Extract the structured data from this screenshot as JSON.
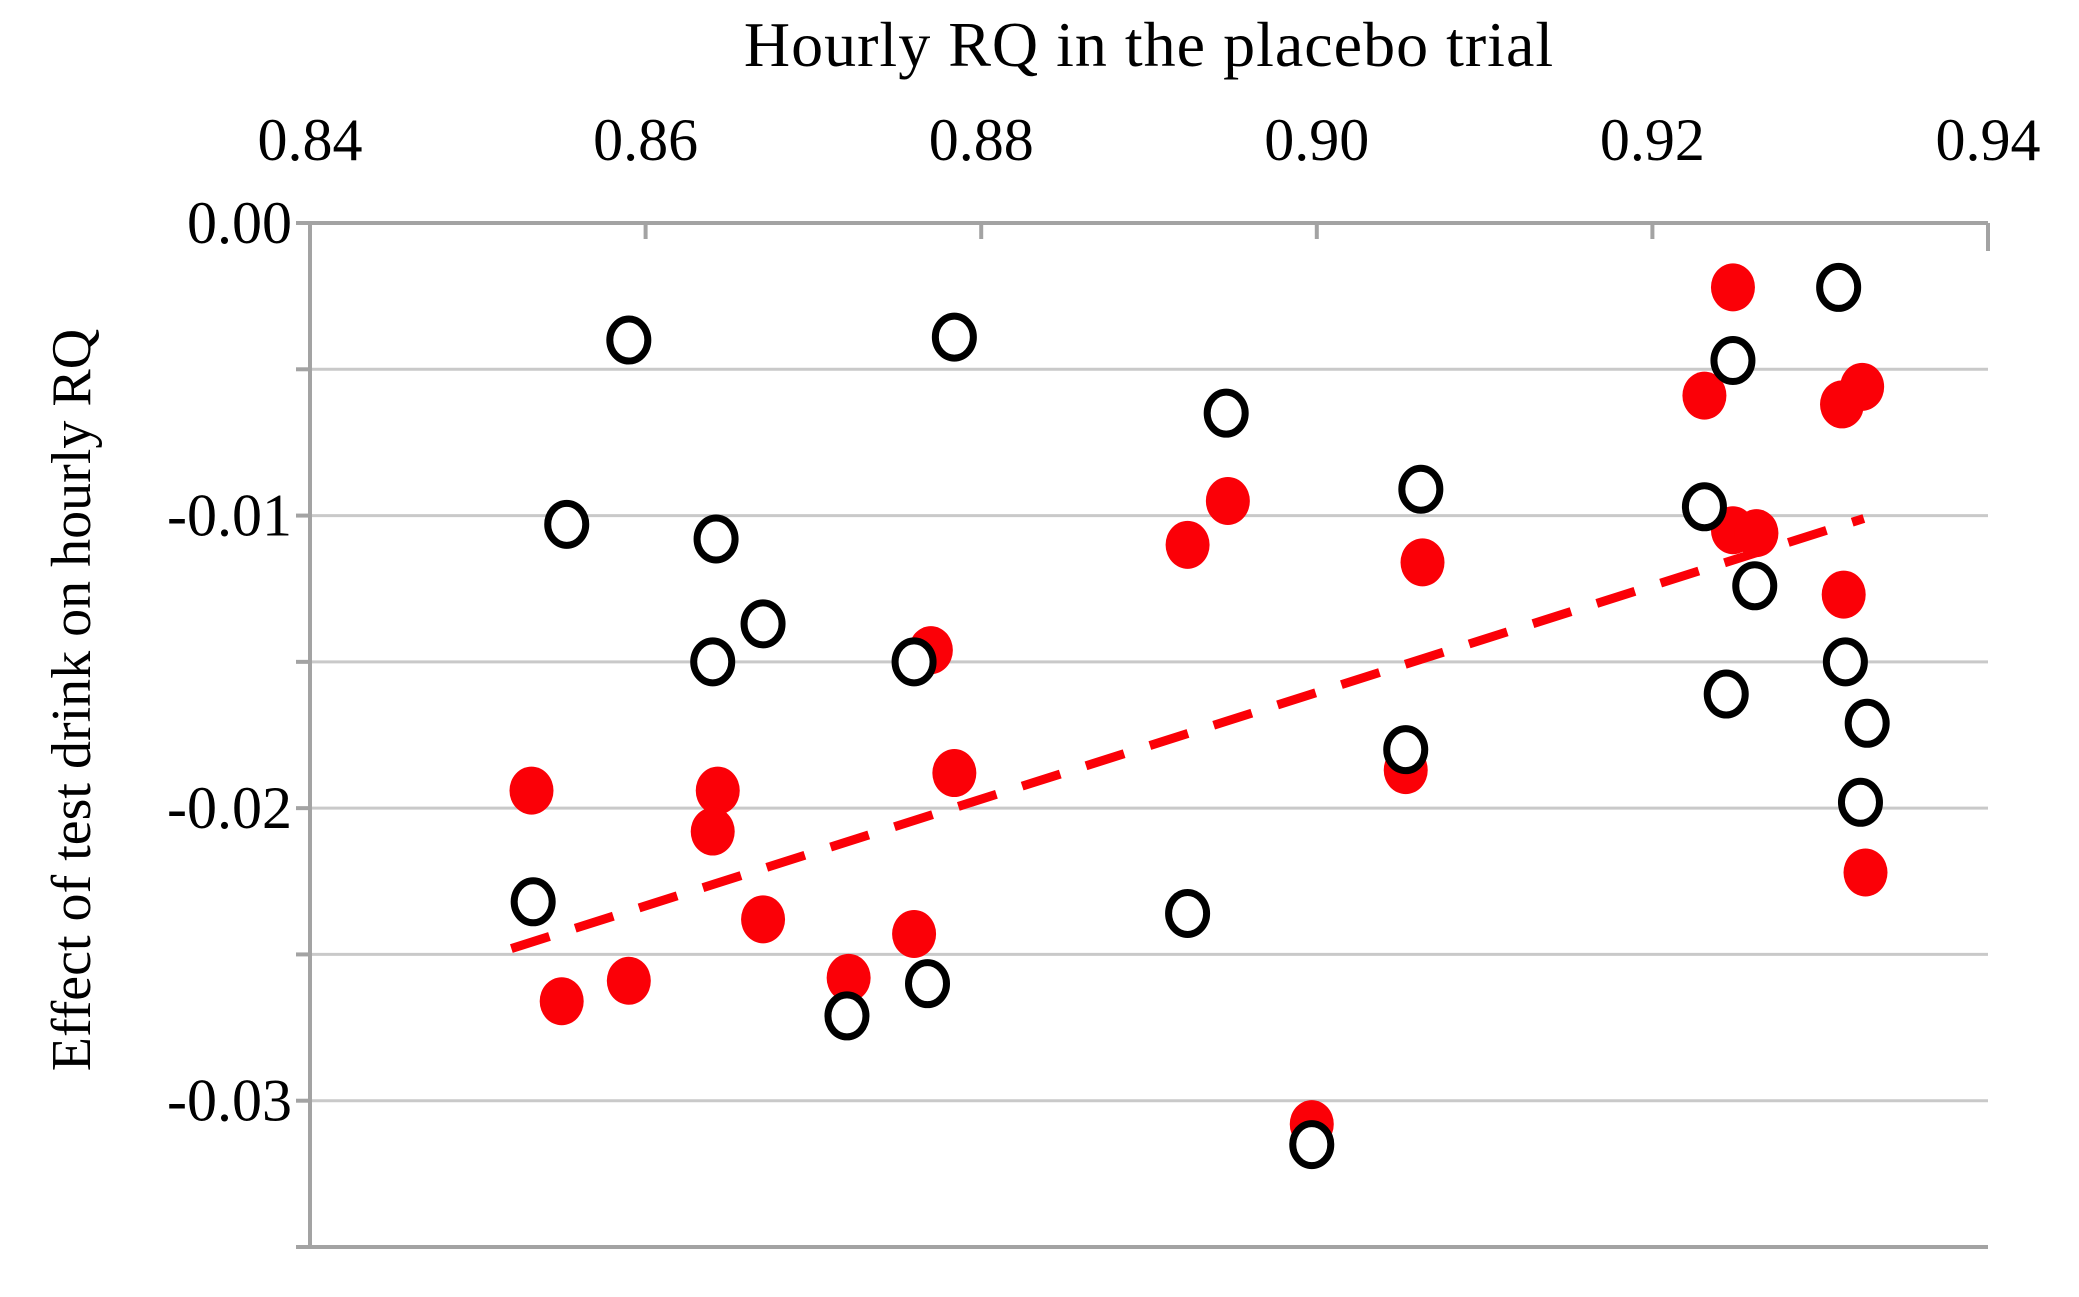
{
  "chart_data": {
    "type": "scatter",
    "title": "Hourly RQ in the placebo trial",
    "title_position": "top-axis",
    "xlabel": "Hourly RQ in the placebo trial",
    "ylabel": "Effect of test drink on hourly RQ",
    "xlim": [
      0.84,
      0.94
    ],
    "ylim": [
      -0.035,
      0.0
    ],
    "x_ticks": [
      0.84,
      0.86,
      0.88,
      0.9,
      0.92,
      0.94
    ],
    "x_tick_labels": [
      "0.84",
      "0.86",
      "0.88",
      "0.90",
      "0.92",
      "0.94"
    ],
    "y_ticks": [
      0.0,
      -0.01,
      -0.02,
      -0.03
    ],
    "y_tick_labels": [
      "0.00",
      "-0.01",
      "-0.02",
      "-0.03"
    ],
    "grid": true,
    "grid_interval": 0.005,
    "legend_position": "none",
    "series": [
      {
        "name": "test-drink-filled-red",
        "marker": "filled-circle",
        "color": "#fb0007",
        "points": [
          [
            0.8532,
            -0.0194
          ],
          [
            0.8643,
            -0.0194
          ],
          [
            0.864,
            -0.0208
          ],
          [
            0.867,
            -0.0238
          ],
          [
            0.855,
            -0.0266
          ],
          [
            0.859,
            -0.0259
          ],
          [
            0.8721,
            -0.0258
          ],
          [
            0.876,
            -0.0243
          ],
          [
            0.877,
            -0.0146
          ],
          [
            0.8784,
            -0.0188
          ],
          [
            0.8923,
            -0.011
          ],
          [
            0.8947,
            -0.0095
          ],
          [
            0.9063,
            -0.0116
          ],
          [
            0.9053,
            -0.0187
          ],
          [
            0.8997,
            -0.0308
          ],
          [
            0.9248,
            -0.0022
          ],
          [
            0.9231,
            -0.0059
          ],
          [
            0.9313,
            -0.0062
          ],
          [
            0.9325,
            -0.0056
          ],
          [
            0.9248,
            -0.0105
          ],
          [
            0.9262,
            -0.0106
          ],
          [
            0.9314,
            -0.0127
          ],
          [
            0.9327,
            -0.0222
          ]
        ]
      },
      {
        "name": "placebo-open-black",
        "marker": "open-circle",
        "color": "#000000",
        "fill": "#ffffff",
        "points": [
          [
            0.859,
            -0.004
          ],
          [
            0.8784,
            -0.0039
          ],
          [
            0.8553,
            -0.0103
          ],
          [
            0.8642,
            -0.0108
          ],
          [
            0.867,
            -0.0137
          ],
          [
            0.864,
            -0.015
          ],
          [
            0.876,
            -0.015
          ],
          [
            0.8946,
            -0.0065
          ],
          [
            0.9062,
            -0.0091
          ],
          [
            0.8533,
            -0.0232
          ],
          [
            0.8923,
            -0.0236
          ],
          [
            0.872,
            -0.0271
          ],
          [
            0.8768,
            -0.026
          ],
          [
            0.9053,
            -0.018
          ],
          [
            0.8997,
            -0.0315
          ],
          [
            0.9231,
            -0.0097
          ],
          [
            0.9248,
            -0.0047
          ],
          [
            0.9311,
            -0.0022
          ],
          [
            0.9261,
            -0.0124
          ],
          [
            0.9315,
            -0.015
          ],
          [
            0.9244,
            -0.0161
          ],
          [
            0.9328,
            -0.0171
          ],
          [
            0.9324,
            -0.0198
          ]
        ]
      }
    ],
    "trendline": {
      "name": "red-dashed-trendline",
      "style": "dashed",
      "color": "#fb0007",
      "from": [
        0.852,
        -0.0248
      ],
      "to": [
        0.9326,
        -0.0101
      ]
    },
    "colors": {
      "gridline": "#c9c9c9",
      "axis": "#a3a3a3",
      "text": "#000000",
      "red_series": "#fb0007"
    }
  }
}
